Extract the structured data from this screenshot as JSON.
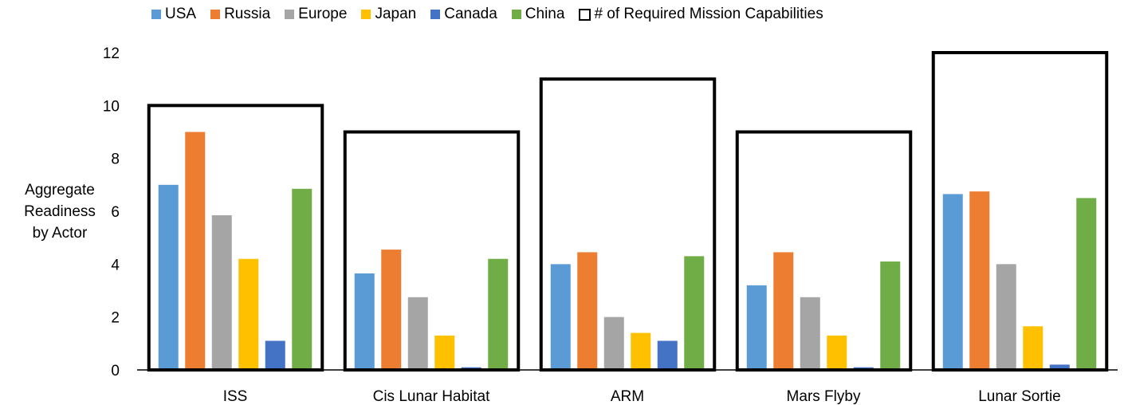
{
  "chart_data": {
    "type": "bar",
    "title": "",
    "ylabel_lines": [
      "Aggregate",
      "Readiness",
      "by Actor"
    ],
    "xlabel": "",
    "ylim": [
      0,
      12
    ],
    "yticks": [
      0,
      2,
      4,
      6,
      8,
      10,
      12
    ],
    "grid": false,
    "legend_position": "top",
    "categories": [
      "ISS",
      "Cis Lunar Habitat",
      "ARM",
      "Mars Flyby",
      "Lunar Sortie"
    ],
    "series": [
      {
        "name": "USA",
        "color": "#5B9BD5",
        "values": [
          7.0,
          3.65,
          4.0,
          3.2,
          6.65
        ]
      },
      {
        "name": "Russia",
        "color": "#ED7D31",
        "values": [
          9.0,
          4.55,
          4.45,
          4.45,
          6.75
        ]
      },
      {
        "name": "Europe",
        "color": "#A5A5A5",
        "values": [
          5.85,
          2.75,
          2.0,
          2.75,
          4.0
        ]
      },
      {
        "name": "Japan",
        "color": "#FFC000",
        "values": [
          4.2,
          1.3,
          1.4,
          1.3,
          1.65
        ]
      },
      {
        "name": "Canada",
        "color": "#4472C4",
        "values": [
          1.1,
          0.1,
          1.1,
          0.1,
          0.2
        ]
      },
      {
        "name": "China",
        "color": "#70AD47",
        "values": [
          6.85,
          4.2,
          4.3,
          4.1,
          6.5
        ]
      }
    ],
    "required_capabilities": {
      "name": "# of Required Mission Capabilities",
      "values": [
        10,
        9,
        11,
        9,
        12
      ]
    }
  }
}
